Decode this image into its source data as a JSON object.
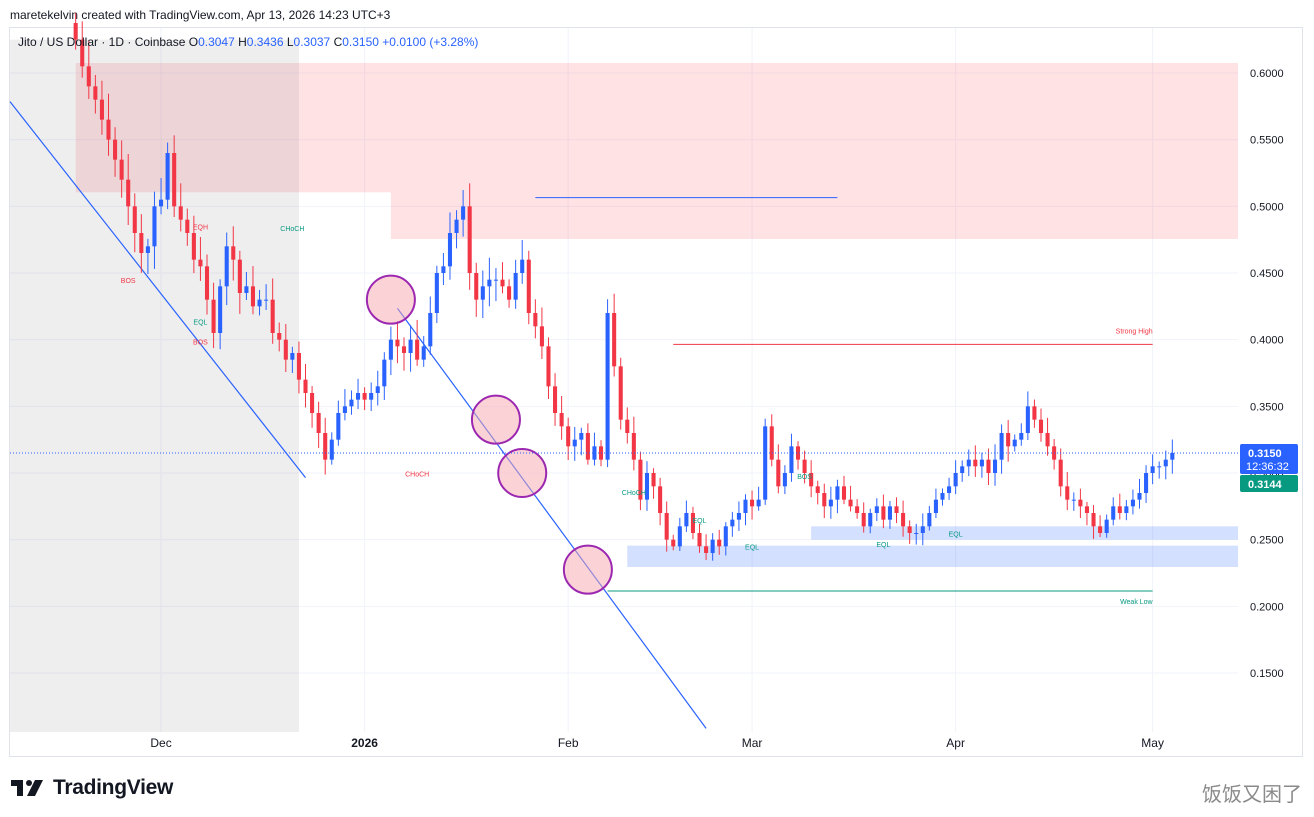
{
  "header": {
    "credit": "maretekelvin created with TradingView.com, Apr 13, 2026 14:23 UTC+3"
  },
  "legend": {
    "symbol": "Jito / US Dollar · 1D · Coinbase",
    "o_label": "O",
    "o": "0.3047",
    "h_label": "H",
    "h": "0.3436",
    "l_label": "L",
    "l": "0.3037",
    "c_label": "C",
    "c": "0.3150",
    "change": "+0.0100 (+3.28%)"
  },
  "brand": {
    "name": "TradingView"
  },
  "watermark": "饭饭又困了",
  "colors": {
    "up": "#2962ff",
    "down": "#f23645",
    "price_line": "#2962ff",
    "current_label_bg": "#2962ff",
    "secondary_label_bg": "#089981",
    "supply_zone": "#f7525f",
    "demand_zone": "#2962ff",
    "trendline": "#2962ff",
    "circle": "#9c27b0"
  },
  "chart_data": {
    "type": "candlestick",
    "title": "Jito / US Dollar · 1D · Coinbase",
    "y_axis": {
      "min": 0.1,
      "max": 0.625,
      "ticks": [
        "0.6000",
        "0.5500",
        "0.5000",
        "0.4500",
        "0.4000",
        "0.3500",
        "0.3000",
        "0.2500",
        "0.2000",
        "0.1500"
      ],
      "tick_values": [
        0.6,
        0.55,
        0.5,
        0.45,
        0.4,
        0.35,
        0.3,
        0.25,
        0.2,
        0.15
      ]
    },
    "x_axis": {
      "range": [
        "2025-11-08",
        "2026-05-14"
      ],
      "labels": [
        {
          "text": "Dec",
          "date": "2025-12-01",
          "bold": false
        },
        {
          "text": "2026",
          "date": "2026-01-01",
          "bold": true
        },
        {
          "text": "Feb",
          "date": "2026-02-01",
          "bold": false
        },
        {
          "text": "Mar",
          "date": "2026-03-01",
          "bold": false
        },
        {
          "text": "Apr",
          "date": "2026-04-01",
          "bold": false
        },
        {
          "text": "May",
          "date": "2026-05-01",
          "bold": false
        }
      ]
    },
    "price_labels": {
      "last": "0.3150",
      "countdown": "12:36:32",
      "secondary": "0.3144"
    },
    "candles_close_path": {
      "start_date": "2025-11-18",
      "note_free": true,
      "closes": [
        0.625,
        0.605,
        0.59,
        0.58,
        0.565,
        0.55,
        0.535,
        0.52,
        0.5,
        0.48,
        0.465,
        0.47,
        0.5,
        0.505,
        0.54,
        0.5,
        0.49,
        0.48,
        0.46,
        0.455,
        0.43,
        0.405,
        0.44,
        0.47,
        0.46,
        0.435,
        0.44,
        0.425,
        0.43,
        0.43,
        0.405,
        0.4,
        0.385,
        0.39,
        0.37,
        0.36,
        0.345,
        0.33,
        0.31,
        0.325,
        0.345,
        0.35,
        0.355,
        0.36,
        0.355,
        0.36,
        0.365,
        0.385,
        0.4,
        0.395,
        0.39,
        0.4,
        0.385,
        0.395,
        0.42,
        0.45,
        0.455,
        0.48,
        0.49,
        0.5,
        0.45,
        0.43,
        0.44,
        0.445,
        0.445,
        0.44,
        0.43,
        0.45,
        0.46,
        0.42,
        0.41,
        0.395,
        0.365,
        0.345,
        0.335,
        0.32,
        0.325,
        0.33,
        0.31,
        0.32,
        0.31,
        0.42,
        0.38,
        0.34,
        0.33,
        0.31,
        0.28,
        0.3,
        0.29,
        0.27,
        0.25,
        0.245,
        0.26,
        0.27,
        0.255,
        0.245,
        0.24,
        0.25,
        0.245,
        0.26,
        0.265,
        0.27,
        0.28,
        0.275,
        0.28,
        0.335,
        0.31,
        0.29,
        0.3,
        0.32,
        0.31,
        0.3,
        0.29,
        0.285,
        0.275,
        0.28,
        0.29,
        0.28,
        0.275,
        0.27,
        0.26,
        0.27,
        0.275,
        0.265,
        0.275,
        0.27,
        0.26,
        0.255,
        0.255,
        0.26,
        0.27,
        0.28,
        0.285,
        0.29,
        0.3,
        0.305,
        0.31,
        0.305,
        0.31,
        0.3,
        0.31,
        0.33,
        0.32,
        0.325,
        0.33,
        0.35,
        0.34,
        0.33,
        0.32,
        0.31,
        0.29,
        0.28,
        0.28,
        0.275,
        0.27,
        0.26,
        0.255,
        0.265,
        0.275,
        0.27,
        0.275,
        0.28,
        0.285,
        0.3,
        0.305,
        0.305,
        0.31,
        0.315
      ]
    },
    "zones": [
      {
        "kind": "supply",
        "from": "2025-11-18",
        "to": "2026-05-14",
        "low": 0.5105,
        "high": 0.6075
      },
      {
        "kind": "supply",
        "from": "2026-01-05",
        "to": "2026-05-14",
        "low": 0.4755,
        "high": 0.5105
      },
      {
        "kind": "demand",
        "from": "2026-03-10",
        "to": "2026-05-14",
        "low": 0.25,
        "high": 0.26
      },
      {
        "kind": "demand",
        "from": "2026-02-10",
        "to": "2026-05-14",
        "low": 0.2295,
        "high": 0.2455
      },
      {
        "kind": "shaded",
        "from": "2025-11-08",
        "to": "2025-12-22",
        "low": 0.1,
        "high": 0.625
      }
    ],
    "levels": [
      {
        "label": "Strong High",
        "value": 0.3965,
        "from": "2026-02-17",
        "to": "2026-05-01",
        "color": "#f23645"
      },
      {
        "label": "Weak Low",
        "value": 0.2115,
        "from": "2026-02-07",
        "to": "2026-05-01",
        "color": "#089981"
      },
      {
        "label": "",
        "value": 0.5065,
        "from": "2026-01-27",
        "to": "2026-03-14",
        "color": "#2962ff"
      }
    ],
    "annotations": [
      {
        "text": "CHoCH",
        "date": "2025-12-21",
        "value": 0.4815,
        "color": "#089981"
      },
      {
        "text": "EQH",
        "date": "2025-12-07",
        "value": 0.4825,
        "color": "#f23645"
      },
      {
        "text": "BOS",
        "date": "2025-11-26",
        "value": 0.4425,
        "color": "#f23645"
      },
      {
        "text": "EQL",
        "date": "2025-12-07",
        "value": 0.4115,
        "color": "#089981"
      },
      {
        "text": "BOS",
        "date": "2025-12-07",
        "value": 0.3965,
        "color": "#f23645"
      },
      {
        "text": "CHoCH",
        "date": "2026-01-09",
        "value": 0.2975,
        "color": "#f23645"
      },
      {
        "text": "CHoCH",
        "date": "2026-02-11",
        "value": 0.2835,
        "color": "#089981"
      },
      {
        "text": "EQL",
        "date": "2026-02-21",
        "value": 0.2625,
        "color": "#089981"
      },
      {
        "text": "BOS",
        "date": "2026-03-09",
        "value": 0.2955,
        "color": "#089981"
      },
      {
        "text": "EQL",
        "date": "2026-03-01",
        "value": 0.2425,
        "color": "#089981"
      },
      {
        "text": "EQL",
        "date": "2026-03-21",
        "value": 0.2445,
        "color": "#089981"
      },
      {
        "text": "EQL",
        "date": "2026-04-01",
        "value": 0.2525,
        "color": "#089981"
      }
    ],
    "trendlines": [
      {
        "from": {
          "date": "2025-11-08",
          "value": 0.5785
        },
        "to": {
          "date": "2025-12-23",
          "value": 0.2965
        }
      },
      {
        "from": {
          "date": "2026-01-06",
          "value": 0.4235
        },
        "to": {
          "date": "2026-02-22",
          "value": 0.1085
        }
      }
    ],
    "circles": [
      {
        "date": "2026-01-05",
        "value": 0.43
      },
      {
        "date": "2026-01-21",
        "value": 0.34
      },
      {
        "date": "2026-01-25",
        "value": 0.3
      },
      {
        "date": "2026-02-04",
        "value": 0.2275
      }
    ],
    "grid": true,
    "legend": "top-left"
  }
}
